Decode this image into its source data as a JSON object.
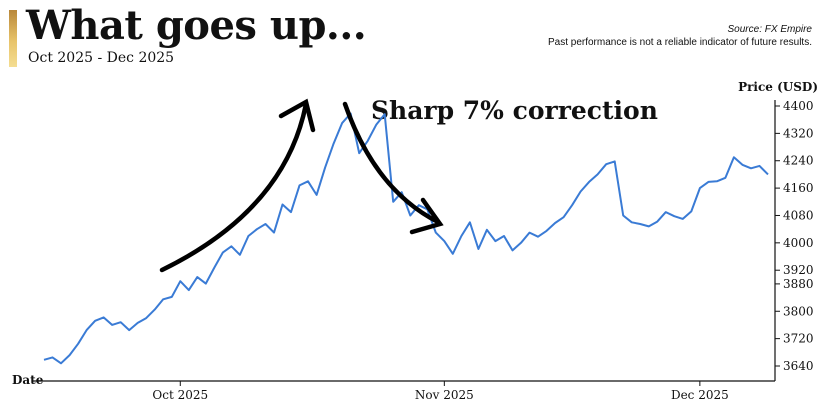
{
  "header": {
    "title": "What goes up...",
    "subtitle": "Oct 2025 - Dec 2025",
    "source": "Source: FX Empire",
    "disclaimer": "Past performance is not a reliable indicator of future results.",
    "accent_color": "#d9a94e"
  },
  "chart_data": {
    "type": "line",
    "title": "What goes up...",
    "subtitle": "Oct 2025 - Dec 2025",
    "xlabel": "Date",
    "ylabel": "Price (USD)",
    "ylim": [
      3620,
      4410
    ],
    "yticks": [
      3640,
      3720,
      3800,
      3880,
      3920,
      4000,
      4080,
      4160,
      4240,
      4320,
      4400
    ],
    "xticks": [
      "Oct 2025",
      "Nov 2025",
      "Dec 2025"
    ],
    "x_range": [
      "2025-09-15",
      "2025-12-09"
    ],
    "xticks_dates": [
      "2025-10-01",
      "2025-11-01",
      "2025-12-01"
    ],
    "grid": false,
    "line_color": "#3a7bd5",
    "annotation": "Sharp 7% correction",
    "series": [
      {
        "x": [
          "2025-09-15",
          "2025-09-16",
          "2025-09-17",
          "2025-09-18",
          "2025-09-19",
          "2025-09-20",
          "2025-09-21",
          "2025-09-22",
          "2025-09-23",
          "2025-09-24",
          "2025-09-25",
          "2025-09-26",
          "2025-09-27",
          "2025-09-28",
          "2025-09-29",
          "2025-09-30",
          "2025-10-01",
          "2025-10-02",
          "2025-10-03",
          "2025-10-04",
          "2025-10-05",
          "2025-10-06",
          "2025-10-07",
          "2025-10-08",
          "2025-10-09",
          "2025-10-10",
          "2025-10-11",
          "2025-10-12",
          "2025-10-13",
          "2025-10-14",
          "2025-10-15",
          "2025-10-16",
          "2025-10-17",
          "2025-10-18",
          "2025-10-19",
          "2025-10-20",
          "2025-10-21",
          "2025-10-22",
          "2025-10-23",
          "2025-10-24",
          "2025-10-25",
          "2025-10-26",
          "2025-10-27",
          "2025-10-28",
          "2025-10-29",
          "2025-10-30",
          "2025-10-31",
          "2025-11-01",
          "2025-11-02",
          "2025-11-03",
          "2025-11-04",
          "2025-11-05",
          "2025-11-06",
          "2025-11-07",
          "2025-11-08",
          "2025-11-09",
          "2025-11-10",
          "2025-11-11",
          "2025-11-12",
          "2025-11-13",
          "2025-11-14",
          "2025-11-15",
          "2025-11-16",
          "2025-11-17",
          "2025-11-18",
          "2025-11-19",
          "2025-11-20",
          "2025-11-21",
          "2025-11-22",
          "2025-11-23",
          "2025-11-24",
          "2025-11-25",
          "2025-11-26",
          "2025-11-27",
          "2025-11-28",
          "2025-11-29",
          "2025-11-30",
          "2025-12-01",
          "2025-12-02",
          "2025-12-03",
          "2025-12-04",
          "2025-12-05",
          "2025-12-06",
          "2025-12-07",
          "2025-12-08",
          "2025-12-09"
        ],
        "values": [
          3658,
          3665,
          3648,
          3672,
          3705,
          3745,
          3772,
          3782,
          3760,
          3768,
          3745,
          3766,
          3780,
          3805,
          3835,
          3842,
          3888,
          3862,
          3900,
          3881,
          3928,
          3972,
          3990,
          3965,
          4020,
          4040,
          4055,
          4030,
          4112,
          4090,
          4168,
          4180,
          4140,
          4220,
          4290,
          4350,
          4378,
          4262,
          4298,
          4345,
          4376,
          4120,
          4148,
          4080,
          4110,
          4098,
          4030,
          4005,
          3968,
          4020,
          4060,
          3982,
          4038,
          4005,
          4020,
          3978,
          4000,
          4030,
          4018,
          4035,
          4058,
          4075,
          4110,
          4150,
          4178,
          4200,
          4230,
          4238,
          4080,
          4060,
          4055,
          4048,
          4062,
          4090,
          4078,
          4070,
          4092,
          4160,
          4178,
          4180,
          4190,
          4250,
          4228,
          4218,
          4225,
          4200
        ]
      }
    ]
  }
}
